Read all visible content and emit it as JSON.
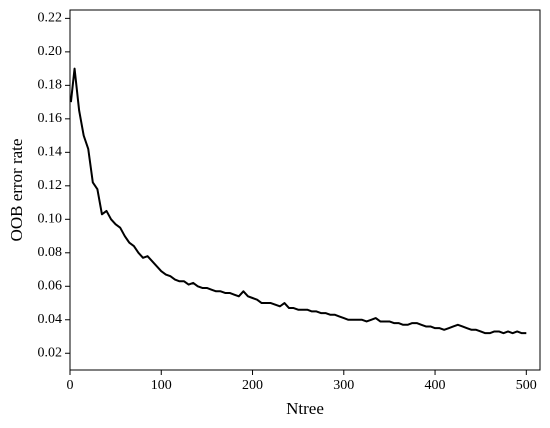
{
  "chart_data": {
    "type": "line",
    "xlabel": "Ntree",
    "ylabel": "OOB error rate",
    "color": "#000000",
    "x": [
      1,
      5,
      10,
      15,
      20,
      25,
      30,
      35,
      40,
      45,
      50,
      55,
      60,
      65,
      70,
      75,
      80,
      85,
      90,
      95,
      100,
      105,
      110,
      115,
      120,
      125,
      130,
      135,
      140,
      145,
      150,
      155,
      160,
      165,
      170,
      175,
      180,
      185,
      190,
      195,
      200,
      205,
      210,
      215,
      220,
      225,
      230,
      235,
      240,
      245,
      250,
      255,
      260,
      265,
      270,
      275,
      280,
      285,
      290,
      295,
      300,
      305,
      310,
      315,
      320,
      325,
      330,
      335,
      340,
      345,
      350,
      355,
      360,
      365,
      370,
      375,
      380,
      385,
      390,
      395,
      400,
      405,
      410,
      415,
      420,
      425,
      430,
      435,
      440,
      445,
      450,
      455,
      460,
      465,
      470,
      475,
      480,
      485,
      490,
      495,
      500
    ],
    "values": [
      0.17,
      0.19,
      0.165,
      0.15,
      0.142,
      0.122,
      0.118,
      0.103,
      0.105,
      0.1,
      0.097,
      0.095,
      0.09,
      0.086,
      0.084,
      0.08,
      0.077,
      0.078,
      0.075,
      0.072,
      0.069,
      0.067,
      0.066,
      0.064,
      0.063,
      0.063,
      0.061,
      0.062,
      0.06,
      0.059,
      0.059,
      0.058,
      0.057,
      0.057,
      0.056,
      0.056,
      0.055,
      0.054,
      0.057,
      0.054,
      0.053,
      0.052,
      0.05,
      0.05,
      0.05,
      0.049,
      0.048,
      0.05,
      0.047,
      0.047,
      0.046,
      0.046,
      0.046,
      0.045,
      0.045,
      0.044,
      0.044,
      0.043,
      0.043,
      0.042,
      0.041,
      0.04,
      0.04,
      0.04,
      0.04,
      0.039,
      0.04,
      0.041,
      0.039,
      0.039,
      0.039,
      0.038,
      0.038,
      0.037,
      0.037,
      0.038,
      0.038,
      0.037,
      0.036,
      0.036,
      0.035,
      0.035,
      0.034,
      0.035,
      0.036,
      0.037,
      0.036,
      0.035,
      0.034,
      0.034,
      0.033,
      0.032,
      0.032,
      0.033,
      0.033,
      0.032,
      0.033,
      0.032,
      0.033,
      0.032,
      0.032
    ],
    "xlim": [
      0,
      515
    ],
    "xticks": [
      0,
      100,
      200,
      300,
      400,
      500
    ],
    "ylim": [
      0.01,
      0.225
    ],
    "yticks": [
      0.02,
      0.04,
      0.06,
      0.08,
      {
        "value": 0.1,
        "label": "0.10"
      },
      0.12,
      0.14,
      0.16,
      0.18,
      {
        "value": 0.2,
        "label": "0.20"
      },
      0.22
    ]
  }
}
